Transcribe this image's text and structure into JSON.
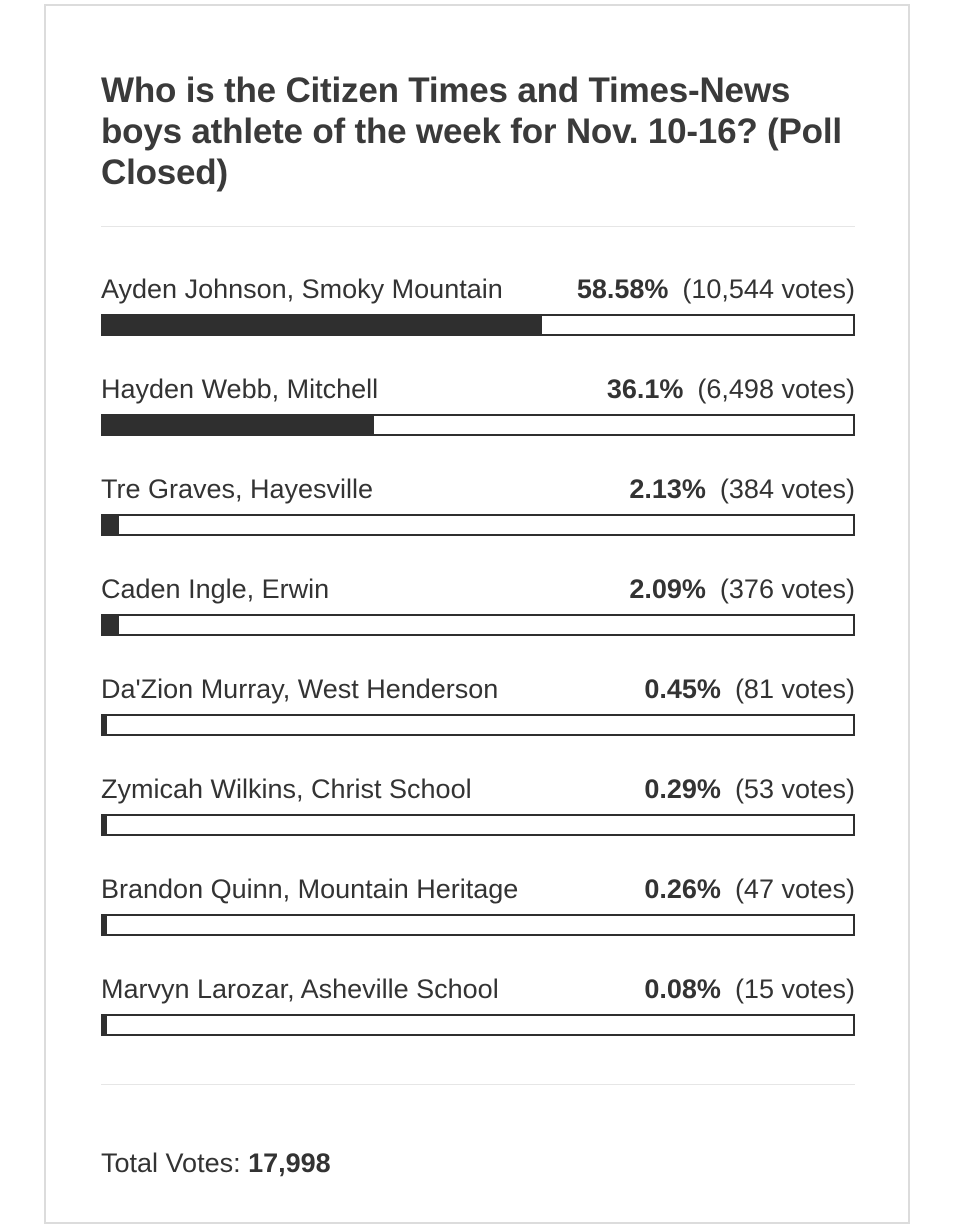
{
  "poll": {
    "title": "Who is the Citizen Times and Times-News boys athlete of the week for Nov. 10-16? (Poll Closed)",
    "options": [
      {
        "label": "Ayden Johnson, Smoky Mountain",
        "percent": 58.58,
        "percent_text": "58.58%",
        "votes_text": "(10,544 votes)"
      },
      {
        "label": "Hayden Webb, Mitchell",
        "percent": 36.1,
        "percent_text": "36.1%",
        "votes_text": "(6,498 votes)"
      },
      {
        "label": "Tre Graves, Hayesville",
        "percent": 2.13,
        "percent_text": "2.13%",
        "votes_text": "(384 votes)"
      },
      {
        "label": "Caden Ingle, Erwin",
        "percent": 2.09,
        "percent_text": "2.09%",
        "votes_text": "(376 votes)"
      },
      {
        "label": "Da'Zion Murray, West Henderson",
        "percent": 0.45,
        "percent_text": "0.45%",
        "votes_text": "(81 votes)"
      },
      {
        "label": "Zymicah Wilkins, Christ School",
        "percent": 0.29,
        "percent_text": "0.29%",
        "votes_text": "(53 votes)"
      },
      {
        "label": "Brandon Quinn, Mountain Heritage",
        "percent": 0.26,
        "percent_text": "0.26%",
        "votes_text": "(47 votes)"
      },
      {
        "label": "Marvyn Larozar, Asheville School",
        "percent": 0.08,
        "percent_text": "0.08%",
        "votes_text": "(15 votes)"
      }
    ],
    "total_label": "Total Votes:",
    "total_value": "17,998",
    "colors": {
      "bar": "#2f2f2f",
      "text": "#333333",
      "border": "#dcdcdc"
    }
  }
}
